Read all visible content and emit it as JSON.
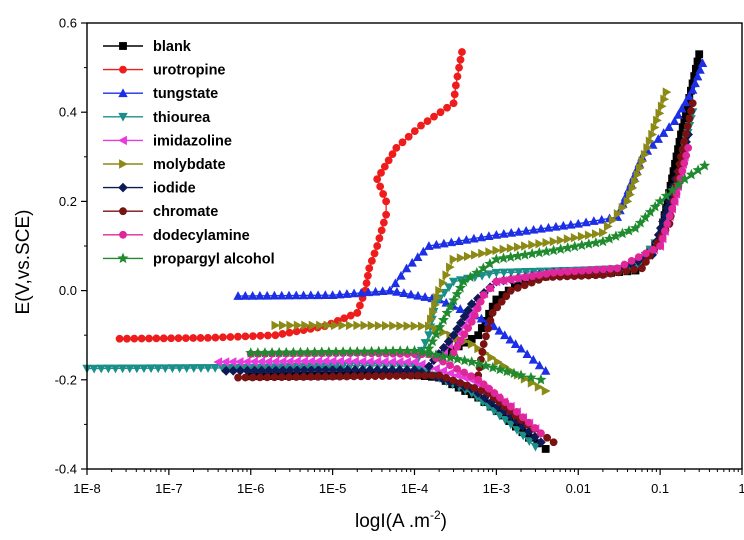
{
  "chart_data": {
    "type": "line",
    "title": "",
    "xlabel": "logI(A .m",
    "xlabel_sup": "-2",
    "xlabel_end": ")",
    "ylabel": "E(V,vs.SCE)",
    "x_scale": "log",
    "xlim": [
      1e-08,
      1
    ],
    "ylim": [
      -0.4,
      0.6
    ],
    "x_ticks": [
      1e-08,
      1e-07,
      1e-06,
      1e-05,
      0.0001,
      0.001,
      0.01,
      0.1,
      1
    ],
    "x_tick_labels": [
      "1E-8",
      "1E-7",
      "1E-6",
      "1E-5",
      "1E-4",
      "1E-3",
      "0.01",
      "0.1",
      "1"
    ],
    "y_ticks": [
      -0.4,
      -0.2,
      0.0,
      0.2,
      0.4,
      0.6
    ],
    "y_tick_labels": [
      "-0.4",
      "-0.2",
      "0.0",
      "0.2",
      "0.4",
      "0.6"
    ],
    "grid": false,
    "legend_position": "top-left",
    "series": [
      {
        "name": "blank",
        "color": "#000000",
        "marker": "square",
        "cathodic": [
          [
            1e-06,
            -0.192
          ],
          [
            1e-05,
            -0.191
          ],
          [
            6e-05,
            -0.185
          ],
          [
            0.0002,
            -0.195
          ],
          [
            0.0006,
            -0.24
          ],
          [
            0.0012,
            -0.28
          ],
          [
            0.0025,
            -0.33
          ],
          [
            0.004,
            -0.355
          ]
        ],
        "anodic": [
          [
            0.0002,
            -0.15
          ],
          [
            0.0006,
            -0.1
          ],
          [
            0.001,
            -0.02
          ],
          [
            0.002,
            0.02
          ],
          [
            0.005,
            0.035
          ],
          [
            0.02,
            0.038
          ],
          [
            0.05,
            0.045
          ],
          [
            0.1,
            0.12
          ],
          [
            0.18,
            0.35
          ],
          [
            0.3,
            0.53
          ]
        ]
      },
      {
        "name": "urotropine",
        "color": "#ee1c1c",
        "marker": "circle",
        "cathodic": [
          [
            2.5e-08,
            -0.108
          ],
          [
            3e-07,
            -0.106
          ],
          [
            2e-06,
            -0.1
          ],
          [
            8e-06,
            -0.08
          ],
          [
            2e-05,
            -0.05
          ]
        ],
        "anodic": [
          [
            2e-05,
            -0.05
          ],
          [
            2.5e-05,
            0.0
          ],
          [
            2.8e-05,
            0.05
          ],
          [
            3.5e-05,
            0.1
          ],
          [
            4.5e-05,
            0.17
          ],
          [
            4.5e-05,
            0.2
          ],
          [
            3.5e-05,
            0.25
          ],
          [
            6e-05,
            0.32
          ],
          [
            0.00012,
            0.37
          ],
          [
            0.0003,
            0.42
          ],
          [
            0.00032,
            0.46
          ],
          [
            0.00035,
            0.5
          ],
          [
            0.00038,
            0.535
          ]
        ]
      },
      {
        "name": "tungstate",
        "color": "#1c2fe6",
        "marker": "triangle-up",
        "cathodic": [
          [
            7e-07,
            -0.012
          ],
          [
            1e-05,
            -0.01
          ],
          [
            5e-05,
            0.0
          ],
          [
            0.0002,
            -0.02
          ],
          [
            0.0008,
            -0.07
          ],
          [
            0.002,
            -0.13
          ],
          [
            0.004,
            -0.18
          ]
        ],
        "anodic": [
          [
            5e-05,
            0.0
          ],
          [
            8e-05,
            0.05
          ],
          [
            0.00015,
            0.1
          ],
          [
            0.001,
            0.125
          ],
          [
            0.01,
            0.15
          ],
          [
            0.03,
            0.165
          ],
          [
            0.06,
            0.3
          ],
          [
            0.15,
            0.38
          ],
          [
            0.25,
            0.45
          ],
          [
            0.33,
            0.51
          ]
        ]
      },
      {
        "name": "thiourea",
        "color": "#1a8f8a",
        "marker": "triangle-down",
        "cathodic": [
          [
            1e-08,
            -0.175
          ],
          [
            1e-06,
            -0.173
          ],
          [
            2e-05,
            -0.168
          ],
          [
            0.0001,
            -0.17
          ],
          [
            0.0005,
            -0.23
          ],
          [
            0.0015,
            -0.3
          ],
          [
            0.003,
            -0.35
          ]
        ],
        "anodic": [
          [
            0.0001,
            -0.17
          ],
          [
            0.00015,
            -0.1
          ],
          [
            0.00018,
            -0.03
          ],
          [
            0.0003,
            0.02
          ],
          [
            0.001,
            0.04
          ],
          [
            0.01,
            0.045
          ],
          [
            0.05,
            0.05
          ],
          [
            0.1,
            0.12
          ],
          [
            0.14,
            0.2
          ],
          [
            0.25,
            0.4
          ]
        ]
      },
      {
        "name": "imidazoline",
        "color": "#e83adf",
        "marker": "triangle-left",
        "cathodic": [
          [
            4e-07,
            -0.16
          ],
          [
            1e-05,
            -0.158
          ],
          [
            0.0001,
            -0.16
          ],
          [
            0.0005,
            -0.2
          ],
          [
            0.0015,
            -0.26
          ],
          [
            0.003,
            -0.31
          ]
        ],
        "anodic": [
          [
            0.0002,
            -0.15
          ],
          [
            0.0004,
            -0.08
          ],
          [
            0.0006,
            -0.02
          ],
          [
            0.001,
            0.02
          ],
          [
            0.005,
            0.04
          ],
          [
            0.03,
            0.045
          ],
          [
            0.1,
            0.1
          ],
          [
            0.15,
            0.2
          ],
          [
            0.2,
            0.3
          ]
        ]
      },
      {
        "name": "molybdate",
        "color": "#8c8a16",
        "marker": "triangle-right",
        "cathodic": [
          [
            2e-06,
            -0.078
          ],
          [
            2e-05,
            -0.078
          ],
          [
            0.00015,
            -0.08
          ],
          [
            0.0005,
            -0.12
          ],
          [
            0.0015,
            -0.18
          ],
          [
            0.004,
            -0.225
          ]
        ],
        "anodic": [
          [
            0.00015,
            -0.08
          ],
          [
            0.0002,
            0.0
          ],
          [
            0.0003,
            0.07
          ],
          [
            0.001,
            0.09
          ],
          [
            0.005,
            0.11
          ],
          [
            0.02,
            0.13
          ],
          [
            0.04,
            0.2
          ],
          [
            0.08,
            0.35
          ],
          [
            0.12,
            0.445
          ]
        ]
      },
      {
        "name": "iodide",
        "color": "#0e1a55",
        "marker": "diamond",
        "cathodic": [
          [
            5e-07,
            -0.18
          ],
          [
            1e-05,
            -0.178
          ],
          [
            0.0001,
            -0.178
          ],
          [
            0.0005,
            -0.22
          ],
          [
            0.0015,
            -0.28
          ],
          [
            0.0035,
            -0.34
          ]
        ],
        "anodic": [
          [
            0.00015,
            -0.17
          ],
          [
            0.0003,
            -0.1
          ],
          [
            0.0005,
            -0.03
          ],
          [
            0.001,
            0.02
          ],
          [
            0.005,
            0.04
          ],
          [
            0.03,
            0.045
          ],
          [
            0.08,
            0.08
          ],
          [
            0.13,
            0.2
          ],
          [
            0.22,
            0.35
          ]
        ]
      },
      {
        "name": "chromate",
        "color": "#7a1212",
        "marker": "circle",
        "cathodic": [
          [
            7e-07,
            -0.195
          ],
          [
            1e-05,
            -0.193
          ],
          [
            0.0002,
            -0.19
          ],
          [
            0.0008,
            -0.23
          ],
          [
            0.002,
            -0.29
          ],
          [
            0.005,
            -0.34
          ]
        ],
        "anodic": [
          [
            0.0006,
            -0.19
          ],
          [
            0.0007,
            -0.12
          ],
          [
            0.0009,
            -0.05
          ],
          [
            0.0015,
            0.0
          ],
          [
            0.004,
            0.03
          ],
          [
            0.02,
            0.035
          ],
          [
            0.06,
            0.05
          ],
          [
            0.13,
            0.15
          ],
          [
            0.18,
            0.3
          ],
          [
            0.25,
            0.42
          ]
        ]
      },
      {
        "name": "dodecylamine",
        "color": "#e0279a",
        "marker": "circle",
        "cathodic": [
          [
            1e-06,
            -0.142
          ],
          [
            2e-05,
            -0.14
          ],
          [
            0.00015,
            -0.143
          ],
          [
            0.0006,
            -0.2
          ],
          [
            0.0015,
            -0.26
          ],
          [
            0.0035,
            -0.32
          ]
        ],
        "anodic": [
          [
            0.0003,
            -0.14
          ],
          [
            0.0005,
            -0.07
          ],
          [
            0.0007,
            -0.01
          ],
          [
            0.001,
            0.02
          ],
          [
            0.005,
            0.04
          ],
          [
            0.03,
            0.05
          ],
          [
            0.1,
            0.1
          ],
          [
            0.15,
            0.2
          ],
          [
            0.22,
            0.32
          ]
        ]
      },
      {
        "name": "propargyl alcohol",
        "color": "#1f8a2e",
        "marker": "star",
        "cathodic": [
          [
            1e-06,
            -0.14
          ],
          [
            2e-05,
            -0.137
          ],
          [
            0.0001,
            -0.135
          ],
          [
            0.0005,
            -0.16
          ],
          [
            0.002,
            -0.19
          ],
          [
            0.0035,
            -0.2
          ]
        ],
        "anodic": [
          [
            0.00015,
            -0.13
          ],
          [
            0.00025,
            -0.05
          ],
          [
            0.0004,
            0.02
          ],
          [
            0.001,
            0.07
          ],
          [
            0.005,
            0.09
          ],
          [
            0.02,
            0.11
          ],
          [
            0.05,
            0.14
          ],
          [
            0.1,
            0.2
          ],
          [
            0.2,
            0.25
          ],
          [
            0.35,
            0.28
          ]
        ]
      }
    ]
  }
}
